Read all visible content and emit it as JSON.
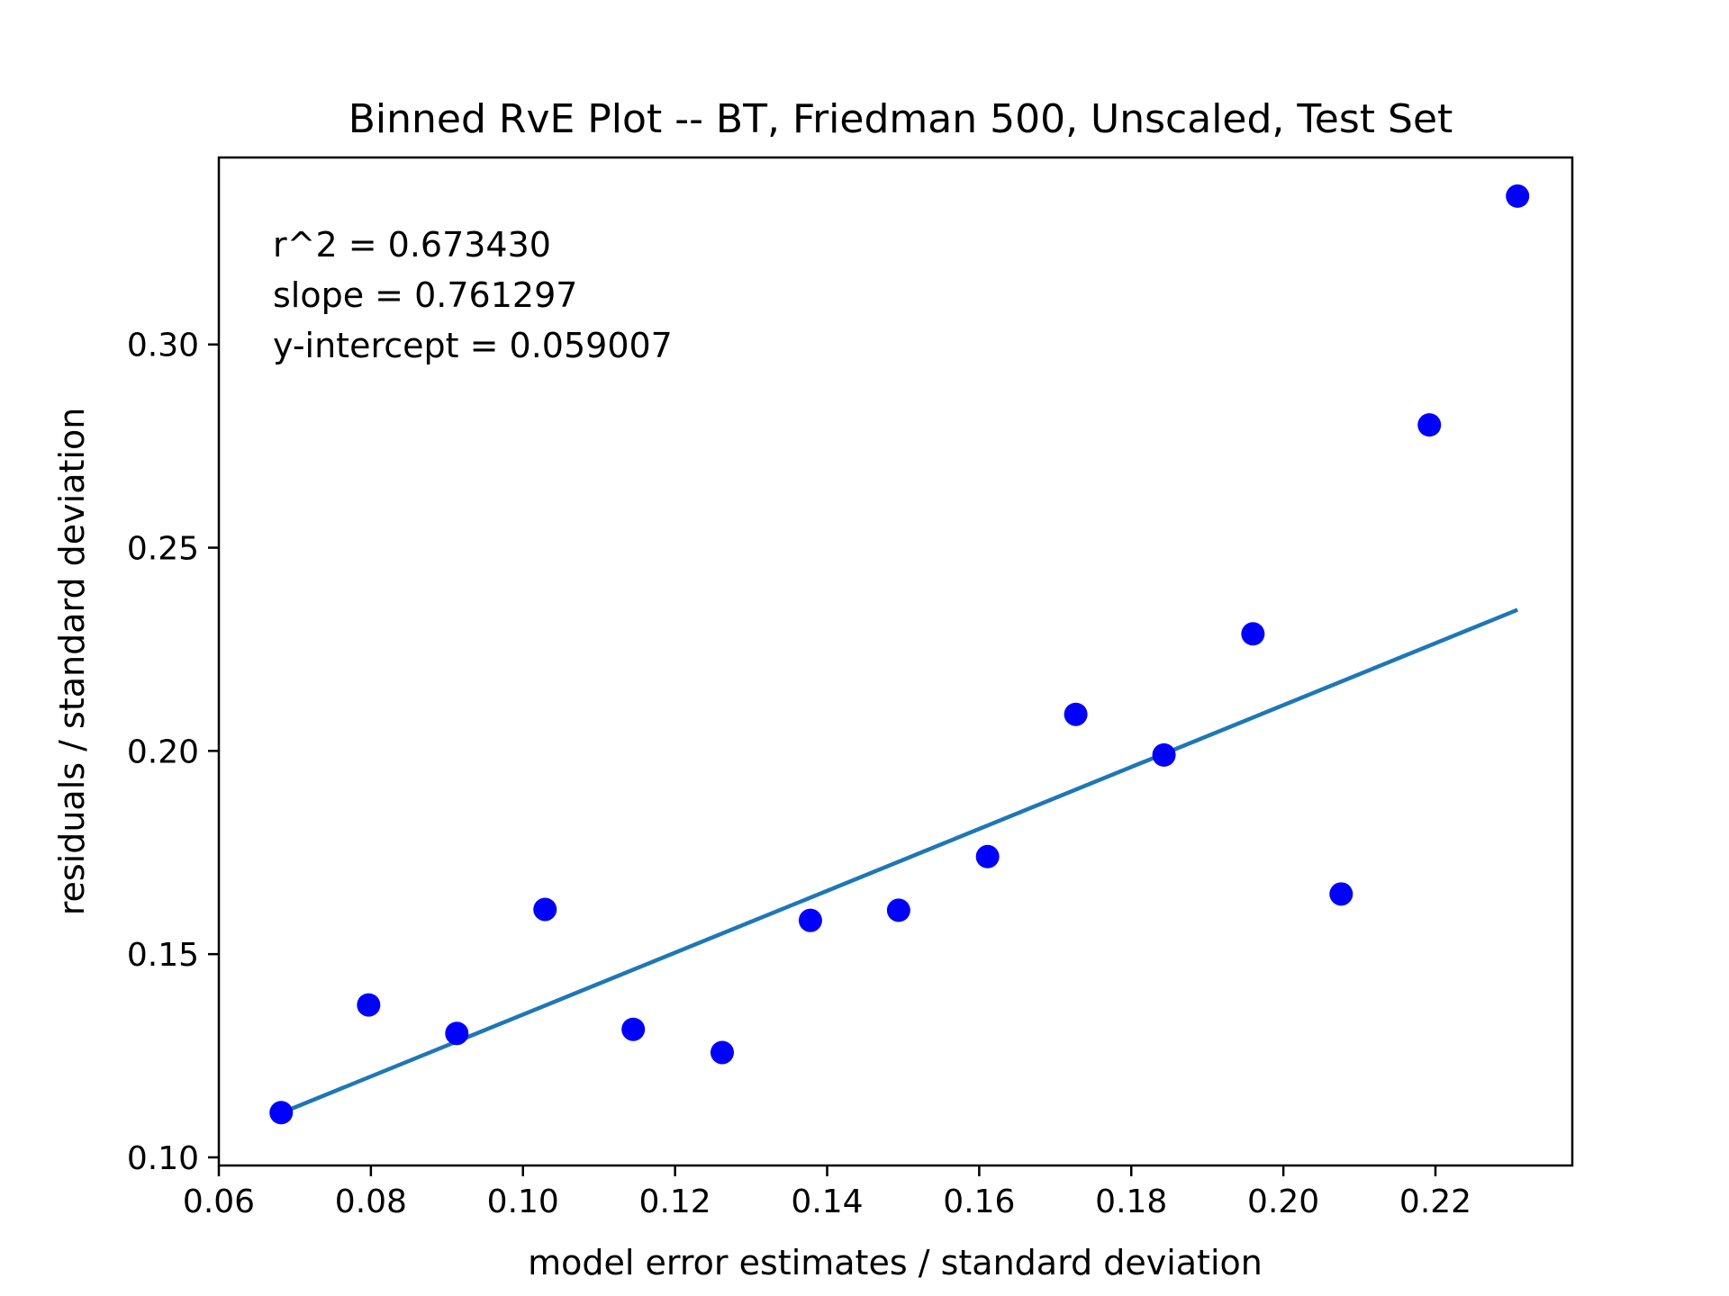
{
  "chart_data": {
    "type": "scatter",
    "title": "Binned RvE Plot -- BT, Friedman 500, Unscaled, Test Set",
    "xlabel": "model error estimates / standard deviation",
    "ylabel": "residuals / standard deviation",
    "xlim": [
      0.06,
      0.238
    ],
    "ylim": [
      0.098,
      0.346
    ],
    "xticks": [
      "0.06",
      "0.08",
      "0.10",
      "0.12",
      "0.14",
      "0.16",
      "0.18",
      "0.20",
      "0.22"
    ],
    "yticks": [
      "0.10",
      "0.15",
      "0.20",
      "0.25",
      "0.30"
    ],
    "grid": false,
    "points_color": "#0000ff",
    "fit_line_color": "#1f77b4",
    "points": [
      {
        "x": 0.0682,
        "y": 0.111
      },
      {
        "x": 0.0797,
        "y": 0.1375
      },
      {
        "x": 0.0913,
        "y": 0.1305
      },
      {
        "x": 0.1029,
        "y": 0.161
      },
      {
        "x": 0.1145,
        "y": 0.1315
      },
      {
        "x": 0.1262,
        "y": 0.1258
      },
      {
        "x": 0.1378,
        "y": 0.1583
      },
      {
        "x": 0.1494,
        "y": 0.1608
      },
      {
        "x": 0.1611,
        "y": 0.174
      },
      {
        "x": 0.1727,
        "y": 0.209
      },
      {
        "x": 0.1843,
        "y": 0.199
      },
      {
        "x": 0.196,
        "y": 0.2288
      },
      {
        "x": 0.2076,
        "y": 0.1648
      },
      {
        "x": 0.2192,
        "y": 0.2802
      },
      {
        "x": 0.2308,
        "y": 0.3365
      }
    ],
    "fit_line": {
      "x": [
        0.0682,
        0.2308
      ],
      "slope": 0.761297,
      "intercept": 0.059007
    },
    "annotations": [
      "r^2 = 0.673430",
      "slope = 0.761297",
      "y-intercept = 0.059007"
    ]
  }
}
